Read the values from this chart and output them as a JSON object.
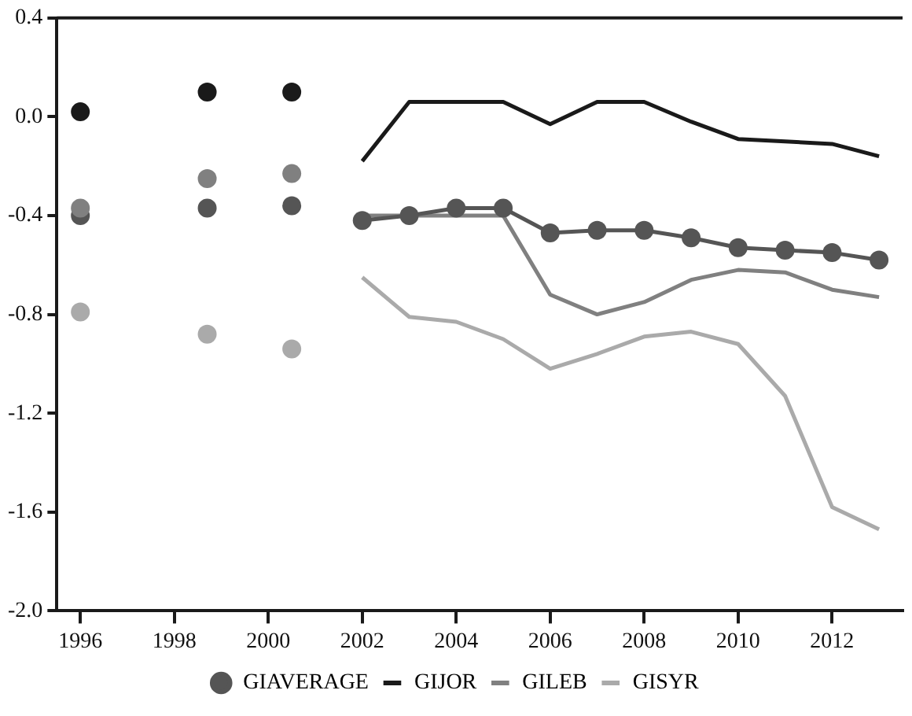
{
  "chart_data": {
    "type": "line",
    "xlim": [
      1995.5,
      2013.5
    ],
    "xticks": [
      1996,
      1998,
      2000,
      2002,
      2004,
      2006,
      2008,
      2010,
      2012
    ],
    "ylim": [
      -2.0,
      0.4
    ],
    "yticks": [
      0.4,
      {
        "value": 0.0,
        "label": "0.0"
      },
      -0.4,
      -0.8,
      -1.2,
      -1.6,
      {
        "value": -2.0,
        "label": "-2.0"
      }
    ],
    "grid": false,
    "legend": "bottom",
    "marker": "none",
    "line_style": "solid",
    "series": [
      {
        "name": "GIAVERAGE",
        "marker": "circle",
        "color": "#555555",
        "x": [
          2002,
          2003,
          2004,
          2005,
          2006,
          2007,
          2008,
          2009,
          2010,
          2011,
          2012,
          2013
        ],
        "values": [
          -0.42,
          -0.4,
          -0.37,
          -0.37,
          -0.47,
          -0.46,
          -0.46,
          -0.49,
          -0.53,
          -0.54,
          -0.55,
          -0.58
        ]
      },
      {
        "name": "GIJOR",
        "color": "#1a1a1a",
        "x": [
          2002,
          2003,
          2004,
          2005,
          2006,
          2007,
          2008,
          2009,
          2010,
          2011,
          2012,
          2013
        ],
        "values": [
          -0.18,
          0.06,
          0.06,
          0.06,
          -0.03,
          0.06,
          0.06,
          -0.02,
          -0.09,
          -0.1,
          -0.11,
          -0.16
        ]
      },
      {
        "name": "GILEB",
        "color": "#808080",
        "x": [
          2002,
          2003,
          2004,
          2005,
          2006,
          2007,
          2008,
          2009,
          2010,
          2011,
          2012,
          2013
        ],
        "values": [
          -0.4,
          -0.4,
          -0.4,
          -0.4,
          -0.72,
          -0.8,
          -0.75,
          -0.66,
          -0.62,
          -0.63,
          -0.7,
          -0.73
        ]
      },
      {
        "name": "GISYR",
        "color": "#aaaaaa",
        "x": [
          2002,
          2003,
          2004,
          2005,
          2006,
          2007,
          2008,
          2009,
          2010,
          2011,
          2012,
          2013
        ],
        "values": [
          -0.65,
          -0.81,
          -0.83,
          -0.9,
          -1.02,
          -0.96,
          -0.89,
          -0.87,
          -0.92,
          -1.13,
          -1.58,
          -1.67
        ]
      },
      {
        "type": "scatter",
        "marker": "circle",
        "color": "#1a1a1a",
        "x": [
          1996,
          1998.7,
          2000.5
        ],
        "values": [
          0.02,
          0.1,
          0.1
        ]
      },
      {
        "type": "scatter",
        "marker": "circle",
        "color": "#808080",
        "x": [
          1996,
          1998.7,
          2000.5
        ],
        "values": [
          -0.37,
          -0.25,
          -0.23
        ]
      },
      {
        "type": "scatter",
        "marker": "circle",
        "color": "#555555",
        "x": [
          1996,
          1998.7,
          2000.5
        ],
        "values": [
          -0.4,
          -0.37,
          -0.36
        ]
      },
      {
        "type": "scatter",
        "marker": "circle",
        "color": "#aaaaaa",
        "x": [
          1996,
          1998.7,
          2000.5
        ],
        "values": [
          -0.79,
          -0.88,
          -0.94
        ]
      }
    ]
  }
}
